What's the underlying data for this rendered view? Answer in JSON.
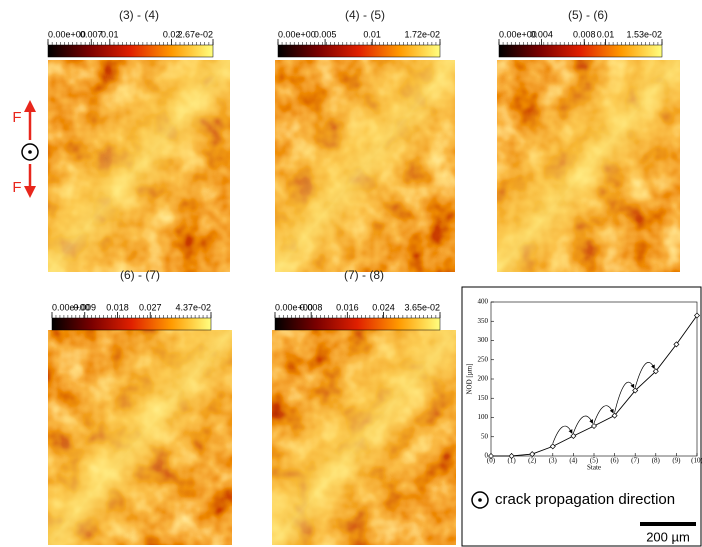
{
  "panels": [
    {
      "title": "(3) - (4)",
      "range": [
        0,
        0.0267
      ],
      "ticks": [
        {
          "value": 0,
          "label": "0.00e+00"
        },
        0.007,
        0.01,
        0.02,
        {
          "value": 0.0267,
          "label": "2.67e-02"
        }
      ]
    },
    {
      "title": "(4) - (5)",
      "range": [
        0,
        0.0172
      ],
      "ticks": [
        {
          "value": 0,
          "label": "0.00e+00"
        },
        0.005,
        0.01,
        {
          "value": 0.0172,
          "label": "1.72e-02"
        }
      ]
    },
    {
      "title": "(5) - (6)",
      "range": [
        0,
        0.0153
      ],
      "ticks": [
        {
          "value": 0,
          "label": "0.00e+00"
        },
        0.004,
        0.008,
        0.01,
        {
          "value": 0.0153,
          "label": "1.53e-02"
        }
      ]
    },
    {
      "title": "(6) - (7)",
      "range": [
        0,
        0.0437
      ],
      "ticks": [
        {
          "value": 0,
          "label": "0.00e+00"
        },
        0.009,
        0.018,
        0.027,
        {
          "value": 0.0437,
          "label": "4.37e-02"
        }
      ]
    },
    {
      "title": "(7) - (8)",
      "range": [
        0,
        0.0365
      ],
      "ticks": [
        {
          "value": 0,
          "label": "0.00e+00"
        },
        0.008,
        0.016,
        0.024,
        {
          "value": 0.0365,
          "label": "3.65e-02"
        }
      ]
    }
  ],
  "force_label": "F",
  "legend_text": "crack propagation direction",
  "scale_bar": "200 µm",
  "chart_data": {
    "type": "line",
    "x_label": "State",
    "y_label": "NOD [µm]",
    "categories": [
      "(0)",
      "(1)",
      "(2)",
      "(3)",
      "(4)",
      "(5)",
      "(6)",
      "(7)",
      "(8)",
      "(9)",
      "(10)"
    ],
    "values": [
      0,
      0,
      5,
      25,
      52,
      78,
      105,
      170,
      220,
      290,
      365
    ],
    "color": "#000000",
    "ylim": [
      0,
      400
    ],
    "yticks": [
      0,
      50,
      100,
      150,
      200,
      250,
      300,
      350,
      400
    ]
  }
}
